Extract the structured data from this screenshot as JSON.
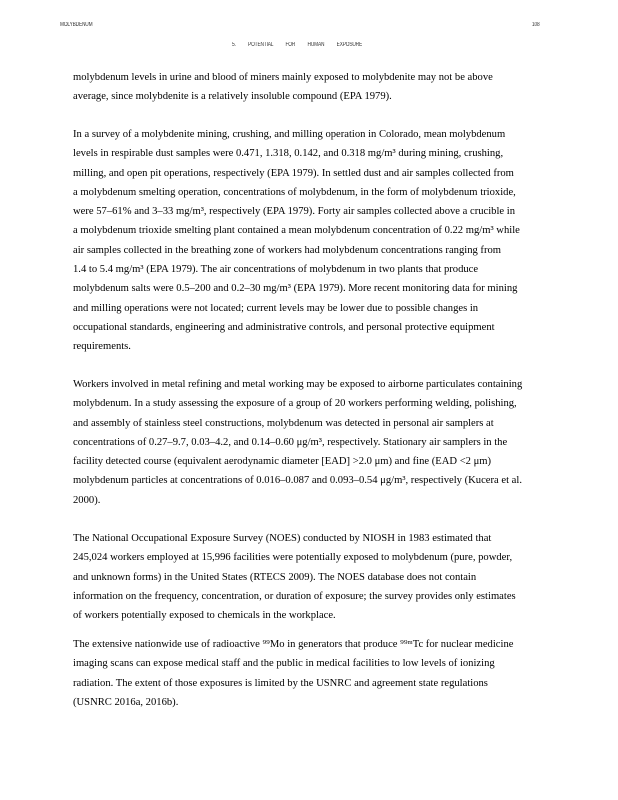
{
  "header": {
    "running_title": "MOLYBDENUM",
    "page_number": "108",
    "section_title": "5. POTENTIAL FOR HUMAN EXPOSURE"
  },
  "paragraphs": [
    {
      "lines": [
        "molybdenum levels in urine and blood of miners mainly exposed to molybdenite may not be above",
        "average, since molybdenite is a relatively insoluble compound (EPA 1979)."
      ]
    },
    {
      "lines": [
        "In a survey of a molybdenite mining, crushing, and milling operation in Colorado, mean molybdenum",
        "levels in respirable dust samples were 0.471, 1.318, 0.142, and 0.318 mg/m³ during mining, crushing,",
        "milling, and open pit operations, respectively (EPA 1979).  In settled dust and air samples collected from",
        "a molybdenum smelting operation, concentrations of molybdenum, in the form of molybdenum trioxide,",
        "were 57–61% and 3–33 mg/m³, respectively (EPA 1979).  Forty air samples collected above a crucible in",
        "a molybdenum trioxide smelting plant contained a mean molybdenum concentration of 0.22 mg/m³ while",
        "air samples collected in the breathing zone of workers had molybdenum concentrations ranging from",
        "1.4 to 5.4 mg/m³ (EPA 1979).  The air concentrations of molybdenum in two plants that produce",
        "molybdenum salts were 0.5–200 and 0.2–30 mg/m³ (EPA 1979).  More recent monitoring data for mining",
        "and milling operations were not located; current levels may be lower due to possible changes in",
        "occupational standards, engineering and administrative controls, and personal protective equipment",
        "requirements."
      ]
    },
    {
      "lines": [
        "Workers involved in metal refining and metal working may be exposed to airborne particulates containing",
        "molybdenum.  In a study assessing the exposure of a group of 20 workers performing welding, polishing,",
        "and assembly of stainless steel constructions, molybdenum was detected in personal air samplers at",
        "concentrations of 0.27–9.7, 0.03–4.2, and 0.14–0.60 μg/m³, respectively.  Stationary air samplers in the",
        "facility detected course (equivalent aerodynamic diameter [EAD] >2.0 μm) and fine (EAD <2 μm)",
        "molybdenum particles at concentrations of 0.016–0.087 and 0.093–0.54 μg/m³, respectively (Kucera et al.",
        "2000)."
      ]
    },
    {
      "lines": [
        "The National Occupational Exposure Survey (NOES) conducted by NIOSH in 1983 estimated that",
        "245,024 workers employed at 15,996 facilities were potentially exposed to molybdenum (pure, powder,",
        "and unknown forms) in the United States (RTECS 2009).  The NOES database does not contain",
        "information on the frequency, concentration, or duration of exposure; the survey provides only estimates",
        "of workers potentially exposed to chemicals in the workplace."
      ]
    },
    {
      "lines": [
        "The extensive nationwide use of radioactive ⁹⁹Mo in generators that produce ⁹⁹ᵐTc for nuclear medicine",
        "imaging scans can expose medical staff and the public in medical facilities to low levels of ionizing",
        "radiation.  The extent of those exposures is limited by the USNRC and agreement state regulations",
        "(USNRC 2016a, 2016b)."
      ]
    }
  ]
}
